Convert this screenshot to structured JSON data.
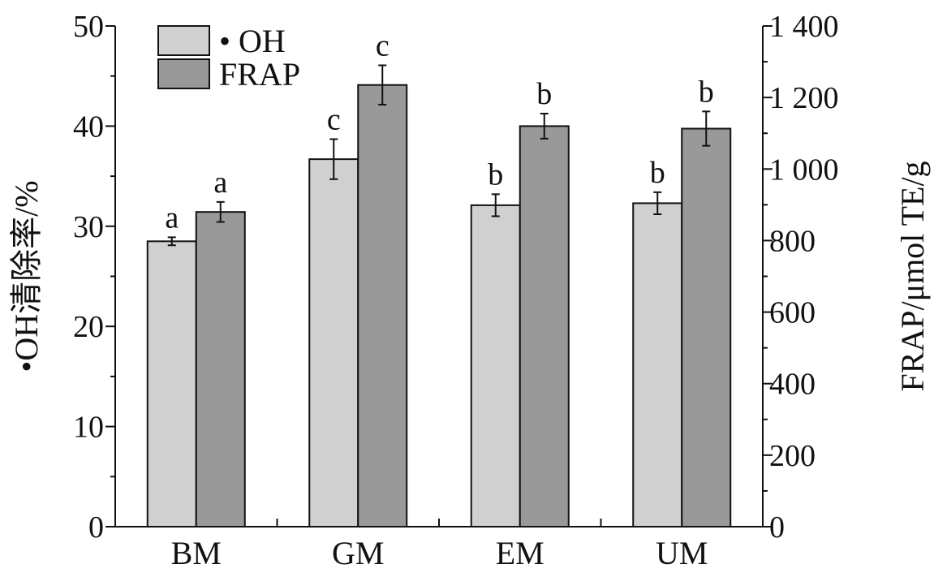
{
  "chart_data": {
    "type": "bar",
    "categories": [
      "BM",
      "GM",
      "EM",
      "UM"
    ],
    "series": [
      {
        "name": "• OH",
        "axis": "left",
        "color": "#d0d0d0",
        "values": [
          28.5,
          36.7,
          32.1,
          32.3
        ],
        "errors": [
          0.4,
          2.0,
          1.1,
          1.1
        ],
        "labels": [
          "a",
          "c",
          "b",
          "b"
        ]
      },
      {
        "name": "FRAP",
        "axis": "right",
        "color": "#999999",
        "values": [
          880,
          1235,
          1120,
          1113
        ],
        "errors": [
          28,
          55,
          35,
          48
        ],
        "labels": [
          "a",
          "c",
          "b",
          "b"
        ]
      }
    ],
    "ylabel": "•OH清除率/%",
    "y2label": "FRAP/μmol TE/g",
    "ylim": [
      0,
      50
    ],
    "y2lim": [
      0,
      1400
    ],
    "yticks": [
      0,
      10,
      20,
      30,
      40,
      50
    ],
    "y2ticks": [
      0,
      200,
      400,
      600,
      800,
      1000,
      1200,
      1400
    ],
    "y2tick_labels": [
      "0",
      "200",
      "400",
      "600",
      "800",
      "1 000",
      "1 200",
      "1 400"
    ],
    "legend_position": "top-left",
    "grid": false
  }
}
